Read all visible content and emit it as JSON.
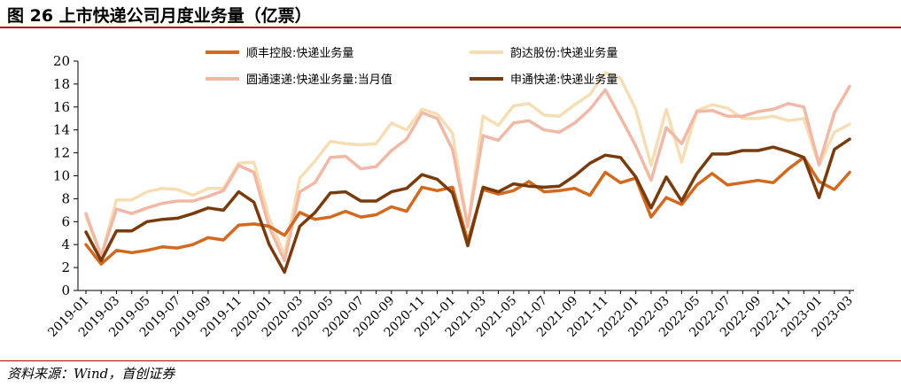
{
  "figure": {
    "title": "图 26 上市快递公司月度业务量（亿票）",
    "source": "资料来源：Wind，首创证券"
  },
  "chart_data": {
    "type": "line",
    "title": "图 26 上市快递公司月度业务量（亿票）",
    "xlabel": "",
    "ylabel": "",
    "ylim": [
      0,
      20
    ],
    "yticks": [
      0,
      2,
      4,
      6,
      8,
      10,
      12,
      14,
      16,
      18,
      20
    ],
    "grid": false,
    "legend_position": "top",
    "x": [
      "2019-01",
      "2019-02",
      "2019-03",
      "2019-04",
      "2019-05",
      "2019-06",
      "2019-07",
      "2019-08",
      "2019-09",
      "2019-10",
      "2019-11",
      "2019-12",
      "2020-01",
      "2020-02",
      "2020-03",
      "2020-04",
      "2020-05",
      "2020-06",
      "2020-07",
      "2020-08",
      "2020-09",
      "2020-10",
      "2020-11",
      "2020-12",
      "2021-01",
      "2021-02",
      "2021-03",
      "2021-04",
      "2021-05",
      "2021-06",
      "2021-07",
      "2021-08",
      "2021-09",
      "2021-10",
      "2021-11",
      "2021-12",
      "2022-01",
      "2022-02",
      "2022-03",
      "2022-04",
      "2022-05",
      "2022-06",
      "2022-07",
      "2022-08",
      "2022-09",
      "2022-10",
      "2022-11",
      "2022-12",
      "2023-01",
      "2023-02",
      "2023-03"
    ],
    "xtick_labels": [
      "2019-01",
      "2019-03",
      "2019-05",
      "2019-07",
      "2019-09",
      "2019-11",
      "2020-01",
      "2020-03",
      "2020-05",
      "2020-07",
      "2020-09",
      "2020-11",
      "2021-01",
      "2021-03",
      "2021-05",
      "2021-07",
      "2021-09",
      "2021-11",
      "2022-01",
      "2022-03",
      "2022-05",
      "2022-07",
      "2022-09",
      "2022-11",
      "2023-01",
      "2023-03"
    ],
    "series": [
      {
        "name": "顺丰控股:快递业务量",
        "color": "#d2691e",
        "values": [
          4.0,
          2.3,
          3.5,
          3.3,
          3.5,
          3.8,
          3.7,
          4.0,
          4.6,
          4.4,
          5.7,
          5.8,
          5.6,
          4.8,
          6.8,
          6.2,
          6.4,
          6.9,
          6.4,
          6.6,
          7.3,
          6.9,
          9.0,
          8.7,
          9.0,
          4.3,
          8.8,
          8.4,
          8.7,
          9.5,
          8.6,
          8.7,
          8.9,
          8.3,
          10.3,
          9.4,
          9.8,
          6.4,
          8.1,
          7.5,
          9.2,
          10.2,
          9.2,
          9.4,
          9.6,
          9.4,
          10.6,
          11.6,
          9.5,
          8.8,
          10.3
        ]
      },
      {
        "name": "韵达股份:快递业务量",
        "color": "#f5deb3",
        "values": [
          6.5,
          3.0,
          7.9,
          7.9,
          8.6,
          8.9,
          8.8,
          8.3,
          8.9,
          8.9,
          11.1,
          11.2,
          6.3,
          3.1,
          9.8,
          11.3,
          13.0,
          12.8,
          12.7,
          12.8,
          14.6,
          14.0,
          15.8,
          15.4,
          13.7,
          5.5,
          15.2,
          14.4,
          16.1,
          16.3,
          15.3,
          15.2,
          16.2,
          17.1,
          19.0,
          18.5,
          15.8,
          10.9,
          15.8,
          11.2,
          15.7,
          16.2,
          15.9,
          15.0,
          15.0,
          15.2,
          14.8,
          15.0,
          10.9,
          13.8,
          14.5
        ]
      },
      {
        "name": "圆通速递:快递业务量:当月值",
        "color": "#f2b8a6",
        "values": [
          6.7,
          3.0,
          7.1,
          6.7,
          7.2,
          7.6,
          7.8,
          7.8,
          8.2,
          8.7,
          10.9,
          10.3,
          5.5,
          2.6,
          8.6,
          9.4,
          11.6,
          11.7,
          10.6,
          10.8,
          12.2,
          13.2,
          15.5,
          15.0,
          12.3,
          5.6,
          13.5,
          13.1,
          14.6,
          14.8,
          14.0,
          13.8,
          14.6,
          15.8,
          17.5,
          15.1,
          12.6,
          9.6,
          14.2,
          12.8,
          15.6,
          15.7,
          15.2,
          15.2,
          15.6,
          15.8,
          16.3,
          16.0,
          11.0,
          15.5,
          17.8
        ]
      },
      {
        "name": "申通快递:快递业务量",
        "color": "#7a3b0c",
        "values": [
          5.1,
          2.6,
          5.2,
          5.2,
          6.0,
          6.2,
          6.3,
          6.7,
          7.2,
          7.0,
          8.6,
          7.7,
          4.0,
          1.6,
          5.6,
          6.8,
          8.5,
          8.6,
          7.8,
          7.8,
          8.6,
          8.9,
          10.1,
          9.7,
          8.5,
          3.9,
          9.0,
          8.6,
          9.3,
          9.1,
          9.0,
          9.1,
          10.0,
          11.1,
          11.8,
          11.6,
          9.9,
          7.2,
          9.9,
          7.8,
          10.2,
          11.9,
          11.9,
          12.2,
          12.2,
          12.5,
          12.1,
          11.6,
          8.1,
          12.3,
          13.2
        ]
      }
    ]
  }
}
